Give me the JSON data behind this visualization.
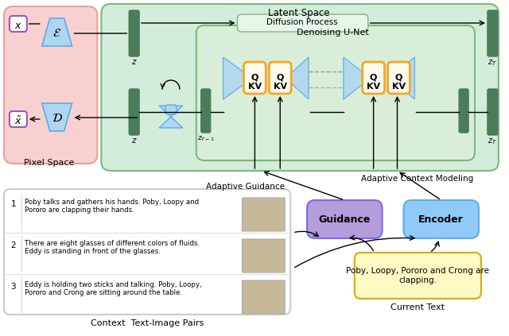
{
  "pixel_space_bg": "#f8d0d0",
  "latent_space_bg": "#d4edda",
  "unet_bg": "#d8eed8",
  "qkv_color": "#f5a623",
  "guidance_color": "#b39ddb",
  "encoder_color": "#90caf9",
  "current_text_color": "#fff9c4",
  "dark_green": "#4a7c59",
  "blue_shape": "#aed6f1",
  "blue_edge": "#5dade2",
  "row1_text": "Poby talks and gathers his hands. Poby, Loopy and\nPororo are clapping their hands.",
  "row2_text": "There are eight glasses of different colors of fluids.\nEddy is standing in front of the glasses.",
  "row3_text": "Eddy is holding two sticks and talking. Poby, Loopy,\nPororo and Crong are sitting around the table.",
  "current_text_content": "Poby, Loopy, Pororo and Crong are\nclapping.",
  "label_context": "Context  Text-Image Pairs",
  "label_current": "Current Text",
  "label_pixel": "Pixel Space",
  "label_latent": "Latent Space",
  "label_diffusion": "Diffusion Process",
  "label_unet": "Denoising U-Net",
  "label_adaptive_guidance": "Adaptive Guidance",
  "label_adaptive_context": "Adaptive Context Modeling"
}
